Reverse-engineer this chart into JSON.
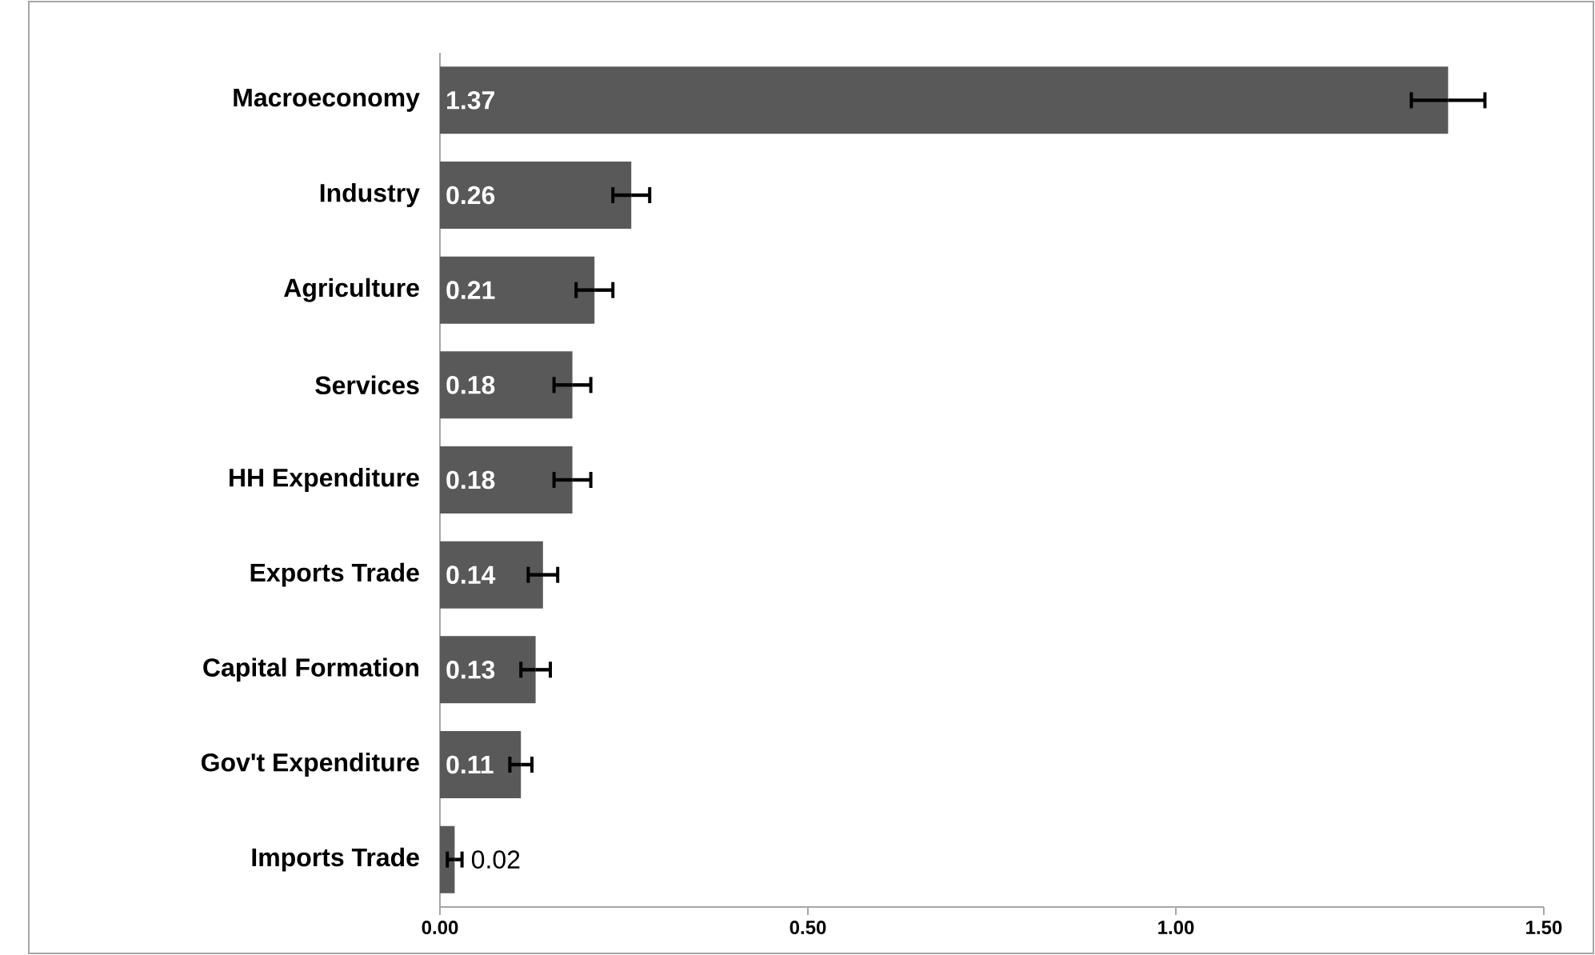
{
  "chart_data": {
    "type": "bar",
    "orientation": "horizontal",
    "data_labels": true,
    "color": "#595959",
    "categories": [
      "Macroeconomy",
      "Industry",
      "Agriculture",
      "Services",
      "HH Expenditure",
      "Exports Trade",
      "Capital Formation",
      "Gov't Expenditure",
      "Imports Trade"
    ],
    "values": [
      1.37,
      0.26,
      0.21,
      0.18,
      0.18,
      0.14,
      0.13,
      0.11,
      0.02
    ],
    "errors": [
      0.05,
      0.025,
      0.025,
      0.025,
      0.025,
      0.02,
      0.02,
      0.015,
      0.01
    ],
    "xlim": [
      0,
      1.5
    ],
    "xticks": [
      {
        "value": 0,
        "label": "0.00"
      },
      {
        "value": 0.5,
        "label": "0.50"
      },
      {
        "value": 1,
        "label": "1.00"
      },
      {
        "value": 1.5,
        "label": "1.50"
      }
    ],
    "grid": false
  }
}
